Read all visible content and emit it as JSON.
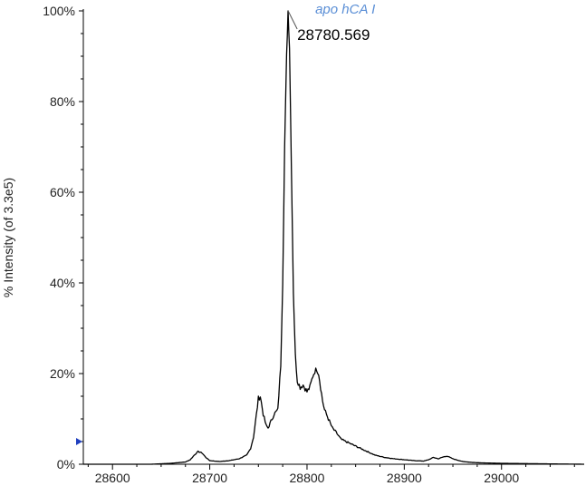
{
  "chart_data": {
    "type": "line",
    "title": "",
    "xlabel": "",
    "ylabel": "% Intensity (of 3.3e5)",
    "xlim": [
      28570,
      29085
    ],
    "ylim": [
      0,
      100
    ],
    "x_ticks": [
      28600,
      28700,
      28800,
      28900,
      29000
    ],
    "x_tick_labels": [
      "28600",
      "28700",
      "28800",
      "28900",
      "29000"
    ],
    "y_ticks": [
      0,
      20,
      40,
      60,
      80,
      100
    ],
    "y_tick_labels": [
      "0%",
      "20%",
      "40%",
      "60%",
      "80%",
      "100%"
    ],
    "grid": false,
    "legend": "none",
    "series": [
      {
        "color": "#000000",
        "x": [
          28570,
          28600,
          28640,
          28660,
          28675,
          28680,
          28684,
          28688,
          28692,
          28696,
          28700,
          28710,
          28720,
          28730,
          28738,
          28742,
          28745,
          28748,
          28750,
          28752,
          28755,
          28758,
          28760,
          28763,
          28766,
          28770,
          28773,
          28775,
          28777,
          28779,
          28780.5,
          28782,
          28784,
          28786,
          28788,
          28790,
          28793,
          28796,
          28800,
          28803,
          28806,
          28808,
          28810,
          28812,
          28814,
          28816,
          28818,
          28822,
          28826,
          28830,
          28835,
          28840,
          28845,
          28850,
          28860,
          28870,
          28880,
          28890,
          28900,
          28910,
          28920,
          28925,
          28930,
          28935,
          28940,
          28944,
          28950,
          28960,
          28970,
          28980,
          29000,
          29020,
          29040,
          29060,
          29085
        ],
        "y": [
          0,
          0,
          0,
          0.2,
          0.5,
          1,
          2,
          2.8,
          2.5,
          1.5,
          0.8,
          0.6,
          0.8,
          1.2,
          2,
          3.5,
          6,
          11,
          14.5,
          15,
          11,
          8.5,
          8,
          9.5,
          11,
          12,
          22,
          40,
          70,
          90,
          100,
          92,
          65,
          38,
          24,
          18.5,
          17,
          17.5,
          16,
          17,
          19.5,
          20.5,
          21,
          20,
          17,
          14,
          12,
          10,
          8,
          7,
          5.5,
          5,
          4.5,
          4,
          3,
          2,
          1.5,
          1.2,
          1,
          0.8,
          0.7,
          1,
          1.5,
          1.2,
          1.6,
          1.8,
          1.2,
          0.6,
          0.4,
          0.3,
          0.2,
          0.15,
          0.1,
          0.05,
          0
        ]
      }
    ],
    "peak_label": {
      "text": "28780.569",
      "x": 28780.569,
      "y": 100
    },
    "annotation": {
      "text": "apo hCA I",
      "color": "#5b8fd6"
    },
    "marker": {
      "color": "#1f3fbf",
      "y": 5
    }
  }
}
